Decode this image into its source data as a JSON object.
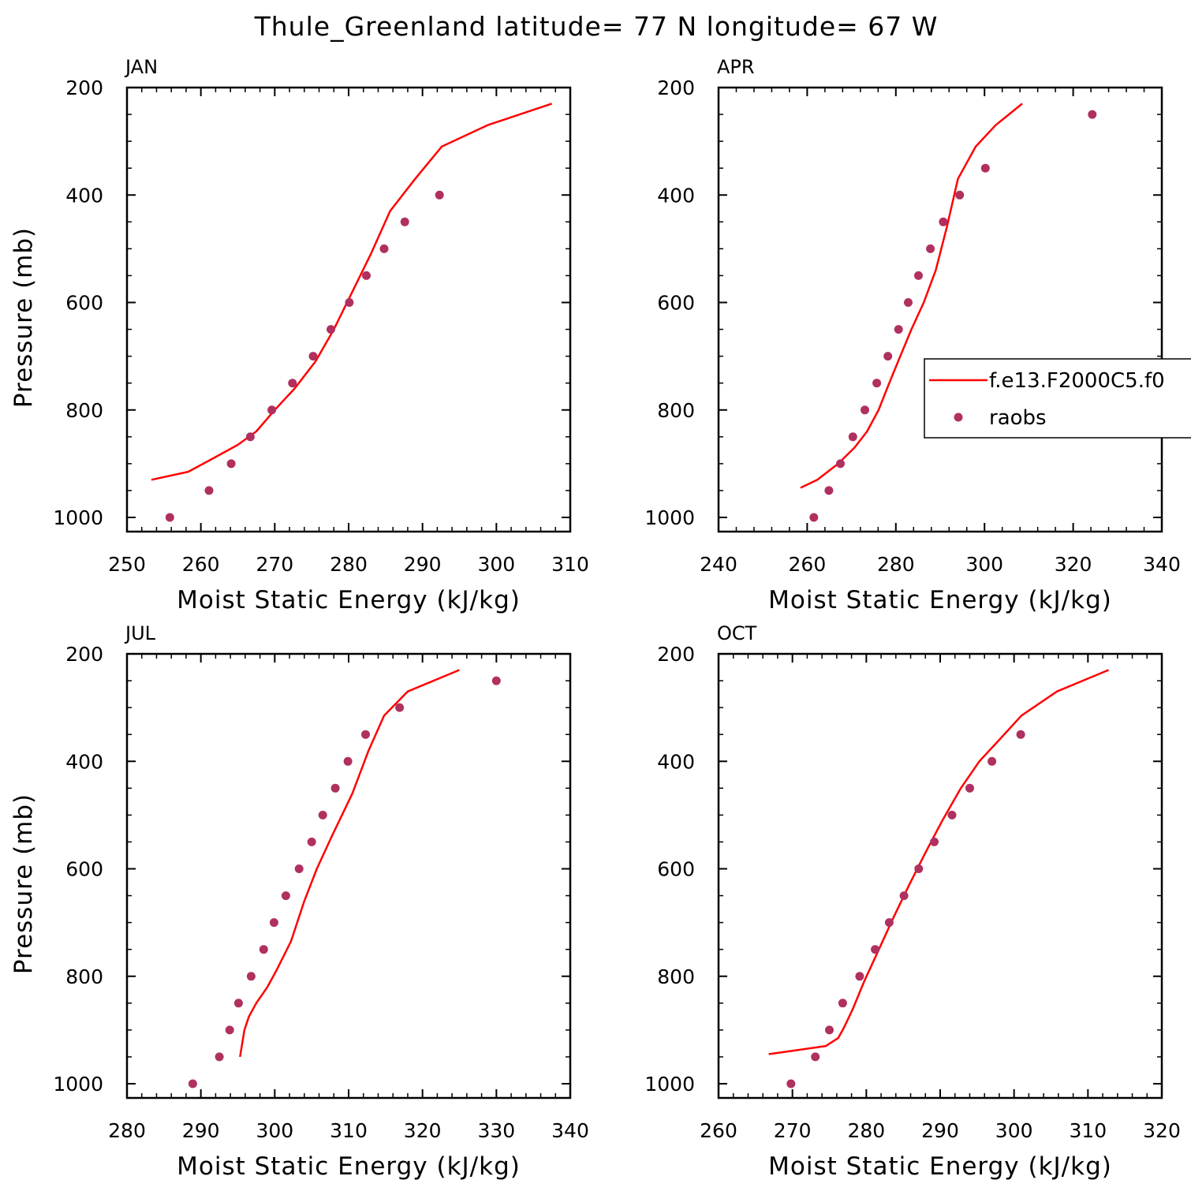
{
  "title": "Thule_Greenland  latitude= 77 N longitude= 67 W",
  "colors": {
    "model": "#ff0000",
    "obs": "#b03060",
    "axes": "#000000",
    "background": "#ffffff"
  },
  "legend": {
    "placement": "right-middle of APR panel (clipped by figure edge)",
    "model_label": "f.e13.F2000C5.f0",
    "obs_label": "raobs"
  },
  "chart_data": [
    {
      "panel": "JAN",
      "type": "line",
      "xlabel": "Moist Static Energy (kJ/kg)",
      "ylabel": "Pressure (mb)",
      "xlim": [
        250,
        310
      ],
      "ylim": [
        1000,
        200
      ],
      "x_ticks": [
        250,
        260,
        270,
        280,
        290,
        300,
        310
      ],
      "y_ticks": [
        200,
        400,
        600,
        800,
        1000
      ],
      "series": [
        {
          "name": "f.e13.F2000C5.f0",
          "type": "line",
          "x": [
            253.3,
            258.3,
            261,
            265,
            267.5,
            270,
            272.7,
            275.5,
            278,
            280.5,
            283,
            285.6,
            289,
            292.6,
            298.8,
            307.5
          ],
          "y": [
            930,
            915,
            895,
            865,
            840,
            800,
            760,
            710,
            650,
            580,
            510,
            430,
            370,
            310,
            270,
            230
          ]
        },
        {
          "name": "raobs",
          "type": "scatter",
          "x": [
            255.8,
            261.1,
            264.1,
            266.7,
            269.6,
            272.4,
            275.2,
            277.6,
            280.1,
            282.4,
            284.8,
            287.6,
            292.3
          ],
          "y": [
            1000,
            950,
            900,
            850,
            800,
            750,
            700,
            650,
            600,
            550,
            500,
            450,
            400
          ]
        }
      ]
    },
    {
      "panel": "APR",
      "type": "line",
      "xlabel": "Moist Static Energy (kJ/kg)",
      "ylabel": "",
      "xlim": [
        240,
        340
      ],
      "ylim": [
        1000,
        200
      ],
      "x_ticks": [
        240,
        260,
        280,
        300,
        320,
        340
      ],
      "y_ticks": [
        200,
        400,
        600,
        800,
        1000
      ],
      "series": [
        {
          "name": "f.e13.F2000C5.f0",
          "type": "line",
          "x": [
            258.5,
            262.3,
            267,
            270.7,
            273.5,
            276.1,
            278.5,
            281,
            283.5,
            286.3,
            289,
            291.5,
            294,
            298,
            302.5,
            308.5
          ],
          "y": [
            945,
            930,
            900,
            870,
            840,
            800,
            750,
            700,
            650,
            600,
            540,
            460,
            370,
            310,
            270,
            230
          ]
        },
        {
          "name": "raobs",
          "type": "scatter",
          "x": [
            261.5,
            264.9,
            267.5,
            270.3,
            273,
            275.7,
            278.2,
            280.6,
            282.8,
            285.1,
            287.8,
            290.7,
            294.4,
            300.2,
            324.3
          ],
          "y": [
            1000,
            950,
            900,
            850,
            800,
            750,
            700,
            650,
            600,
            550,
            500,
            450,
            400,
            350,
            250
          ]
        }
      ]
    },
    {
      "panel": "JUL",
      "type": "line",
      "xlabel": "Moist Static Energy (kJ/kg)",
      "ylabel": "Pressure (mb)",
      "xlim": [
        280,
        340
      ],
      "ylim": [
        1000,
        200
      ],
      "x_ticks": [
        280,
        290,
        300,
        310,
        320,
        330,
        340
      ],
      "y_ticks": [
        200,
        400,
        600,
        800,
        1000
      ],
      "series": [
        {
          "name": "f.e13.F2000C5.f0",
          "type": "line",
          "x": [
            295.3,
            295.6,
            295.9,
            296.5,
            297.5,
            299,
            300.2,
            302.2,
            304,
            305.7,
            307.7,
            310.5,
            312.7,
            314.8,
            318,
            325
          ],
          "y": [
            950,
            925,
            900,
            875,
            850,
            820,
            790,
            735,
            660,
            600,
            540,
            460,
            380,
            315,
            270,
            230
          ]
        },
        {
          "name": "raobs",
          "type": "scatter",
          "x": [
            288.9,
            292.5,
            293.9,
            295.1,
            296.8,
            298.5,
            299.9,
            301.5,
            303.3,
            305,
            306.5,
            308.2,
            309.9,
            312.3,
            316.9,
            330
          ],
          "y": [
            1000,
            950,
            900,
            850,
            800,
            750,
            700,
            650,
            600,
            550,
            500,
            450,
            400,
            350,
            300,
            250
          ]
        }
      ]
    },
    {
      "panel": "OCT",
      "type": "line",
      "xlabel": "Moist Static Energy (kJ/kg)",
      "ylabel": "",
      "xlim": [
        260,
        320
      ],
      "ylim": [
        1000,
        200
      ],
      "x_ticks": [
        260,
        270,
        280,
        290,
        300,
        310,
        320
      ],
      "y_ticks": [
        200,
        400,
        600,
        800,
        1000
      ],
      "series": [
        {
          "name": "f.e13.F2000C5.f0",
          "type": "line",
          "x": [
            266.8,
            274.5,
            276.2,
            277,
            278.2,
            279.7,
            281.7,
            283.7,
            285.8,
            288,
            290.3,
            292.8,
            295.3,
            298,
            301,
            305.8,
            312.8
          ],
          "y": [
            945,
            930,
            915,
            895,
            860,
            810,
            750,
            690,
            630,
            570,
            510,
            450,
            400,
            360,
            315,
            270,
            230
          ]
        },
        {
          "name": "raobs",
          "type": "scatter",
          "x": [
            269.8,
            273.1,
            275,
            276.8,
            279.1,
            281.2,
            283.1,
            285.1,
            287.1,
            289.2,
            291.6,
            294,
            297,
            300.9
          ],
          "y": [
            1000,
            950,
            900,
            850,
            800,
            750,
            700,
            650,
            600,
            550,
            500,
            450,
            400,
            350
          ]
        }
      ]
    }
  ]
}
